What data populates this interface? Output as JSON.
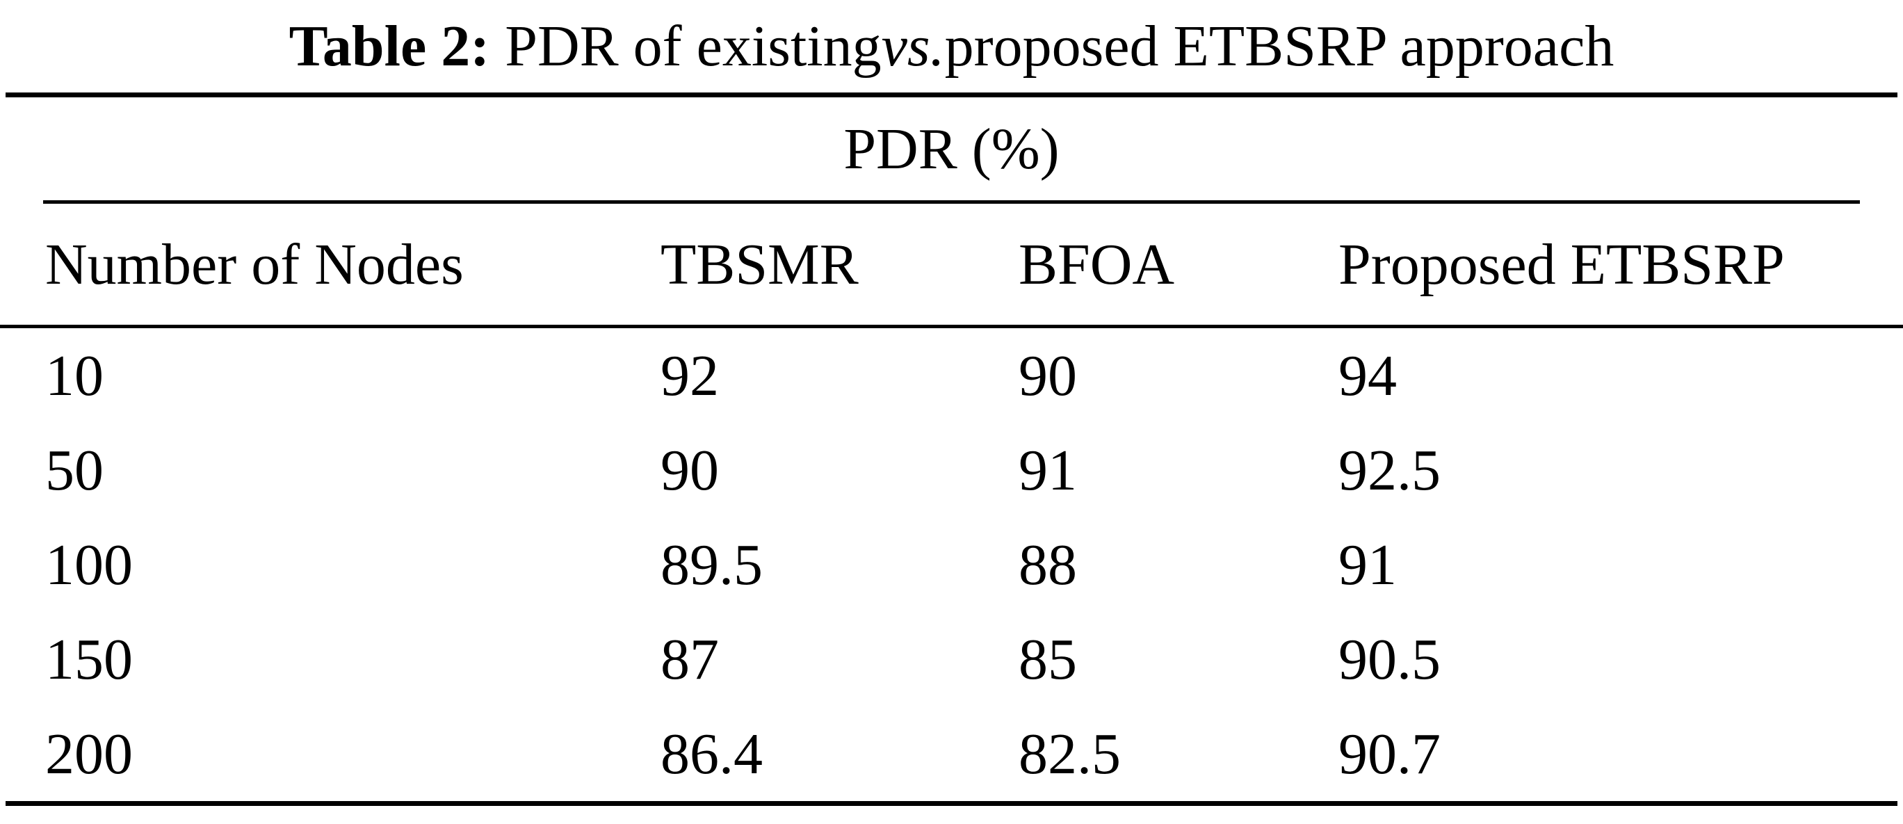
{
  "caption": {
    "label": "Table 2:",
    "pre": "PDR of existing",
    "vs": "vs.",
    "post": "proposed ETBSRP approach"
  },
  "table": {
    "group_header": "PDR (%)",
    "columns": [
      "Number of Nodes",
      "TBSMR",
      "BFOA",
      "Proposed ETBSRP"
    ],
    "rows": [
      [
        "10",
        "92",
        "90",
        "94"
      ],
      [
        "50",
        "90",
        "91",
        "92.5"
      ],
      [
        "100",
        "89.5",
        "88",
        "91"
      ],
      [
        "150",
        "87",
        "85",
        "90.5"
      ],
      [
        "200",
        "86.4",
        "82.5",
        "90.7"
      ]
    ]
  },
  "chart_data": {
    "type": "table",
    "title": "Table 2: PDR of existing vs. proposed ETBSRP approach",
    "group_header": "PDR (%)",
    "columns": [
      "Number of Nodes",
      "TBSMR",
      "BFOA",
      "Proposed ETBSRP"
    ],
    "categories": [
      10,
      50,
      100,
      150,
      200
    ],
    "series": [
      {
        "name": "TBSMR",
        "values": [
          92,
          90,
          89.5,
          87,
          86.4
        ]
      },
      {
        "name": "BFOA",
        "values": [
          90,
          91,
          88,
          85,
          82.5
        ]
      },
      {
        "name": "Proposed ETBSRP",
        "values": [
          94,
          92.5,
          91,
          90.5,
          90.7
        ]
      }
    ]
  },
  "colors": {
    "text": "#000000",
    "rule": "#000000",
    "background": "#ffffff"
  }
}
